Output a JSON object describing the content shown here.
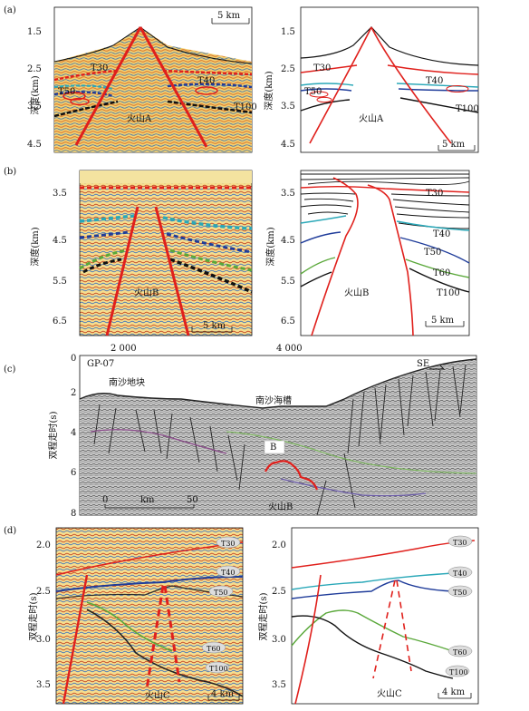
{
  "panels": {
    "a": {
      "label": "(a)",
      "axis_label": "深度(km)",
      "ticks": [
        "1.5",
        "2.5",
        "3.5",
        "4.5"
      ],
      "scale": "5 km",
      "volcano": "火山A",
      "horizons": [
        "T30",
        "T40",
        "T50",
        "T100"
      ]
    },
    "b": {
      "label": "(b)",
      "axis_label": "深度(km)",
      "ticks": [
        "3.5",
        "4.5",
        "5.5",
        "6.5"
      ],
      "scale": "5 km",
      "volcano": "火山B",
      "horizons": [
        "T30",
        "T40",
        "T50",
        "T60",
        "T100"
      ]
    },
    "c": {
      "label": "(c)",
      "axis_label": "双程走时(s)",
      "y_ticks": [
        "0",
        "2",
        "4",
        "6",
        "8"
      ],
      "x_ticks": [
        "2 000",
        "4 000"
      ],
      "line_id": "GP-07",
      "direction": "SE",
      "region_left": "南沙地块",
      "region_trough": "南沙海槽",
      "box_label": "B",
      "volcano": "火山B",
      "scale_start": "0",
      "scale_unit": "km",
      "scale_end": "50"
    },
    "d": {
      "label": "(d)",
      "axis_label": "双程走时(s)",
      "ticks": [
        "2.0",
        "2.5",
        "3.0",
        "3.5"
      ],
      "scale": "4 km",
      "volcano": "火山C",
      "horizons": [
        "T30",
        "T40",
        "T50",
        "T60",
        "T100"
      ]
    }
  },
  "colors": {
    "t30": "#e0201c",
    "t40": "#2aa8b8",
    "t50": "#1f3c9a",
    "t60": "#5aa83a",
    "t100": "#111111",
    "fault": "#e0201c"
  }
}
